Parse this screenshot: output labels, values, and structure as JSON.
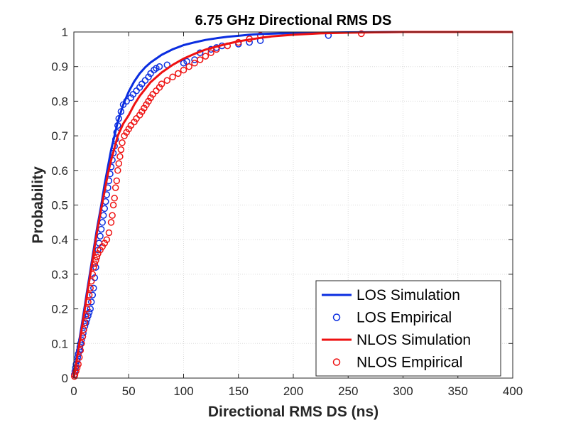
{
  "chart_data": {
    "type": "line",
    "title": "6.75 GHz Directional RMS DS",
    "xlabel": "Directional RMS DS (ns)",
    "ylabel": "Probability",
    "xlim": [
      0,
      400
    ],
    "ylim": [
      0,
      1
    ],
    "xticks": [
      "0",
      "50",
      "100",
      "150",
      "200",
      "250",
      "300",
      "350",
      "400"
    ],
    "yticks": [
      "0",
      "0.1",
      "0.2",
      "0.3",
      "0.4",
      "0.5",
      "0.6",
      "0.7",
      "0.8",
      "0.9",
      "1"
    ],
    "grid": true,
    "legend_position": "bottom-right",
    "colors": {
      "los": "#0a2de0",
      "nlos": "#ee1111"
    },
    "series": [
      {
        "name": "LOS Simulation",
        "style": "line",
        "color_key": "los",
        "x": [
          0,
          2,
          4,
          6,
          8,
          10,
          12,
          15,
          18,
          21,
          25,
          28,
          31,
          34,
          37,
          40,
          45,
          50,
          55,
          60,
          65,
          70,
          80,
          90,
          100,
          110,
          120,
          130,
          140,
          150,
          160,
          170,
          180,
          200,
          225,
          250,
          300,
          350,
          400
        ],
        "y": [
          0,
          0.045,
          0.09,
          0.13,
          0.17,
          0.21,
          0.25,
          0.31,
          0.37,
          0.43,
          0.5,
          0.56,
          0.61,
          0.66,
          0.7,
          0.74,
          0.79,
          0.828,
          0.857,
          0.88,
          0.898,
          0.912,
          0.934,
          0.95,
          0.962,
          0.97,
          0.977,
          0.982,
          0.986,
          0.989,
          0.992,
          0.994,
          0.995,
          0.997,
          0.998,
          0.999,
          1.0,
          1.0,
          1.0
        ]
      },
      {
        "name": "LOS Empirical",
        "style": "markers",
        "color_key": "los",
        "x": [
          0.5,
          1,
          1.5,
          2,
          3,
          3.5,
          4,
          5,
          5.5,
          6,
          7,
          8,
          8.5,
          9,
          10,
          11,
          12,
          13,
          14,
          15,
          16,
          17,
          18,
          19,
          20,
          21,
          22,
          23,
          24,
          25,
          26,
          27,
          28,
          29,
          30,
          31,
          32,
          33,
          34,
          35,
          36,
          37,
          38,
          39,
          40,
          41,
          43,
          45,
          48,
          52,
          54,
          57,
          60,
          62,
          65,
          68,
          70,
          73,
          75,
          78,
          85,
          100,
          103,
          110,
          115,
          125,
          130,
          135,
          150,
          160,
          170,
          232
        ],
        "y": [
          0.01,
          0.02,
          0.03,
          0.04,
          0.05,
          0.06,
          0.07,
          0.08,
          0.09,
          0.1,
          0.11,
          0.12,
          0.13,
          0.14,
          0.15,
          0.16,
          0.17,
          0.18,
          0.19,
          0.2,
          0.22,
          0.24,
          0.26,
          0.29,
          0.32,
          0.35,
          0.37,
          0.39,
          0.41,
          0.43,
          0.45,
          0.47,
          0.49,
          0.51,
          0.53,
          0.55,
          0.57,
          0.59,
          0.61,
          0.63,
          0.65,
          0.67,
          0.69,
          0.71,
          0.73,
          0.75,
          0.77,
          0.79,
          0.8,
          0.81,
          0.82,
          0.83,
          0.84,
          0.85,
          0.86,
          0.87,
          0.88,
          0.89,
          0.895,
          0.9,
          0.905,
          0.91,
          0.915,
          0.92,
          0.94,
          0.95,
          0.955,
          0.96,
          0.965,
          0.97,
          0.975,
          0.99
        ]
      },
      {
        "name": "NLOS Simulation",
        "style": "line",
        "color_key": "nlos",
        "x": [
          0,
          2,
          4,
          6,
          8,
          10,
          12,
          15,
          18,
          21,
          25,
          28,
          31,
          34,
          37,
          40,
          45,
          50,
          55,
          60,
          65,
          70,
          80,
          90,
          100,
          110,
          120,
          130,
          140,
          150,
          160,
          170,
          180,
          200,
          225,
          250,
          300,
          350,
          400
        ],
        "y": [
          0,
          0.04,
          0.08,
          0.12,
          0.16,
          0.2,
          0.24,
          0.3,
          0.36,
          0.42,
          0.49,
          0.54,
          0.59,
          0.63,
          0.665,
          0.7,
          0.735,
          0.76,
          0.79,
          0.815,
          0.835,
          0.855,
          0.883,
          0.905,
          0.923,
          0.937,
          0.949,
          0.958,
          0.966,
          0.973,
          0.978,
          0.983,
          0.987,
          0.992,
          0.996,
          0.998,
          1.0,
          1.0,
          1.0
        ]
      },
      {
        "name": "NLOS Empirical",
        "style": "markers",
        "color_key": "nlos",
        "x": [
          0.5,
          1,
          2,
          3,
          4,
          5,
          6,
          7,
          8,
          9,
          10,
          11,
          12,
          13,
          14,
          15,
          16,
          17,
          18,
          19,
          20,
          21,
          22,
          24,
          26,
          28,
          30,
          32,
          34,
          35,
          36,
          37,
          38,
          39,
          40,
          41,
          42,
          43,
          44,
          46,
          48,
          50,
          52,
          55,
          57,
          60,
          62,
          64,
          66,
          68,
          70,
          72,
          75,
          78,
          80,
          85,
          90,
          95,
          100,
          105,
          110,
          115,
          120,
          125,
          130,
          140,
          150,
          160,
          170,
          262
        ],
        "y": [
          0.005,
          0.01,
          0.02,
          0.03,
          0.04,
          0.06,
          0.08,
          0.1,
          0.12,
          0.14,
          0.16,
          0.18,
          0.2,
          0.22,
          0.24,
          0.26,
          0.28,
          0.3,
          0.32,
          0.33,
          0.34,
          0.35,
          0.36,
          0.37,
          0.38,
          0.39,
          0.4,
          0.42,
          0.45,
          0.47,
          0.5,
          0.52,
          0.55,
          0.57,
          0.6,
          0.62,
          0.64,
          0.66,
          0.68,
          0.7,
          0.71,
          0.72,
          0.73,
          0.74,
          0.75,
          0.76,
          0.77,
          0.78,
          0.79,
          0.8,
          0.81,
          0.82,
          0.83,
          0.84,
          0.85,
          0.86,
          0.87,
          0.88,
          0.89,
          0.9,
          0.91,
          0.92,
          0.93,
          0.94,
          0.95,
          0.96,
          0.97,
          0.98,
          0.99,
          0.995
        ]
      }
    ]
  }
}
